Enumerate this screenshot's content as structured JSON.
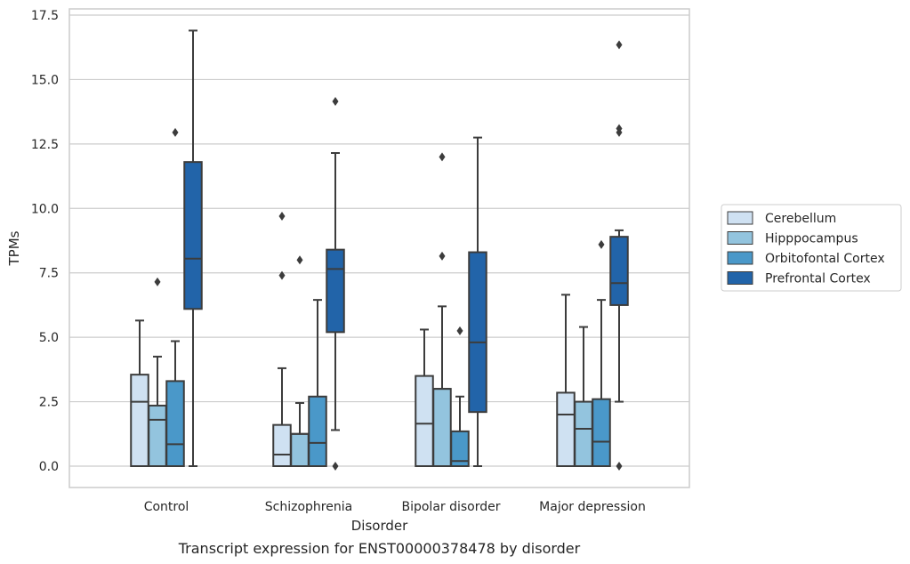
{
  "chart_data": {
    "type": "box",
    "title": "",
    "caption": "Transcript expression for ENST00000378478 by disorder",
    "xlabel": "Disorder",
    "ylabel": "TPMs",
    "ylim": [
      -0.8,
      17.6
    ],
    "yticks": [
      "0.0",
      "2.5",
      "5.0",
      "7.5",
      "10.0",
      "12.5",
      "15.0",
      "17.5"
    ],
    "categories": [
      "Control",
      "Schizophrenia",
      "Bipolar disorder",
      "Major depression"
    ],
    "grid": "horizontal",
    "legend_position": "right",
    "colors": {
      "Cerebellum": "#cfe1f2",
      "Hipppocampus": "#93c4de",
      "Orbitofontal Cortex": "#4a98c9",
      "Prefrontal Cortex": "#2264a9"
    },
    "series": [
      {
        "name": "Cerebellum",
        "boxes": [
          {
            "whisker_low": 0.0,
            "q1": 0.0,
            "median": 2.5,
            "q3": 3.55,
            "whisker_high": 5.65,
            "outliers": []
          },
          {
            "whisker_low": 0.0,
            "q1": 0.0,
            "median": 0.45,
            "q3": 1.6,
            "whisker_high": 3.8,
            "outliers": [
              7.4,
              9.7
            ]
          },
          {
            "whisker_low": 0.0,
            "q1": 0.0,
            "median": 1.65,
            "q3": 3.5,
            "whisker_high": 5.3,
            "outliers": []
          },
          {
            "whisker_low": 0.0,
            "q1": 0.0,
            "median": 2.0,
            "q3": 2.85,
            "whisker_high": 6.65,
            "outliers": []
          }
        ]
      },
      {
        "name": "Hipppocampus",
        "boxes": [
          {
            "whisker_low": 0.0,
            "q1": 0.0,
            "median": 1.8,
            "q3": 2.35,
            "whisker_high": 4.25,
            "outliers": [
              7.15
            ]
          },
          {
            "whisker_low": 0.0,
            "q1": 0.0,
            "median": 1.25,
            "q3": 1.25,
            "whisker_high": 2.45,
            "outliers": [
              8.0
            ]
          },
          {
            "whisker_low": 0.0,
            "q1": 0.0,
            "median": 3.0,
            "q3": 3.0,
            "whisker_high": 6.2,
            "outliers": [
              8.15,
              12.0
            ]
          },
          {
            "whisker_low": 0.0,
            "q1": 0.0,
            "median": 1.45,
            "q3": 2.5,
            "whisker_high": 5.4,
            "outliers": []
          }
        ]
      },
      {
        "name": "Orbitofontal Cortex",
        "boxes": [
          {
            "whisker_low": 0.0,
            "q1": 0.0,
            "median": 0.85,
            "q3": 3.3,
            "whisker_high": 4.85,
            "outliers": [
              12.95
            ]
          },
          {
            "whisker_low": 0.0,
            "q1": 0.0,
            "median": 0.9,
            "q3": 2.7,
            "whisker_high": 6.45,
            "outliers": []
          },
          {
            "whisker_low": 0.0,
            "q1": 0.0,
            "median": 0.2,
            "q3": 1.35,
            "whisker_high": 2.7,
            "outliers": [
              5.25
            ]
          },
          {
            "whisker_low": 0.0,
            "q1": 0.0,
            "median": 0.95,
            "q3": 2.6,
            "whisker_high": 6.45,
            "outliers": [
              8.6
            ]
          }
        ]
      },
      {
        "name": "Prefrontal Cortex",
        "boxes": [
          {
            "whisker_low": 0.0,
            "q1": 6.1,
            "median": 8.05,
            "q3": 11.8,
            "whisker_high": 16.9,
            "outliers": []
          },
          {
            "whisker_low": 1.4,
            "q1": 5.2,
            "median": 7.65,
            "q3": 8.4,
            "whisker_high": 12.15,
            "outliers": [
              0.0,
              14.15
            ]
          },
          {
            "whisker_low": 0.0,
            "q1": 2.1,
            "median": 4.8,
            "q3": 8.3,
            "whisker_high": 12.75,
            "outliers": []
          },
          {
            "whisker_low": 2.5,
            "q1": 6.25,
            "median": 7.1,
            "q3": 8.9,
            "whisker_high": 9.15,
            "outliers": [
              0.0,
              12.95,
              13.1,
              16.35
            ]
          }
        ]
      }
    ]
  }
}
